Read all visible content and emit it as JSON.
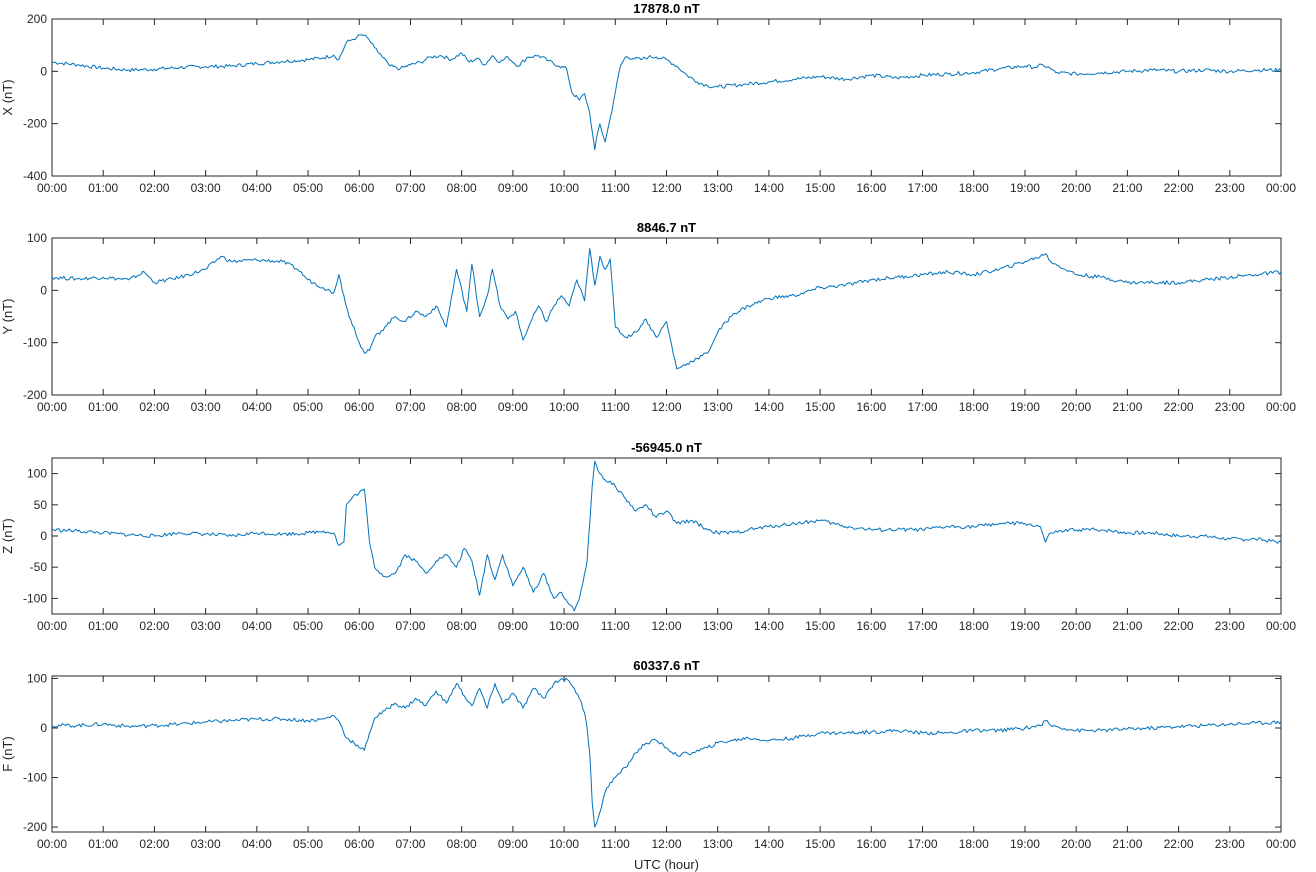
{
  "chart_data": [
    {
      "type": "line",
      "title": "17878.0 nT",
      "ylabel": "X (nT)",
      "xlabel": "",
      "ylim": [
        -400,
        200
      ],
      "yticks": [
        200,
        0,
        -200,
        -400
      ],
      "xticks": [
        "00:00",
        "01:00",
        "02:00",
        "03:00",
        "04:00",
        "05:00",
        "06:00",
        "07:00",
        "08:00",
        "09:00",
        "10:00",
        "11:00",
        "12:00",
        "13:00",
        "14:00",
        "15:00",
        "16:00",
        "17:00",
        "18:00",
        "19:00",
        "20:00",
        "21:00",
        "22:00",
        "23:00",
        "00:00"
      ],
      "series": [
        {
          "color": "#0072bd",
          "x": [
            0,
            0.5,
            1,
            1.5,
            2,
            2.5,
            3,
            3.5,
            4,
            4.5,
            5,
            5.3,
            5.5,
            5.6,
            5.75,
            5.85,
            5.95,
            6.05,
            6.15,
            6.3,
            6.45,
            6.6,
            6.8,
            7,
            7.2,
            7.4,
            7.6,
            7.8,
            8,
            8.15,
            8.3,
            8.45,
            8.6,
            8.75,
            8.9,
            9.1,
            9.3,
            9.5,
            9.7,
            9.9,
            10.05,
            10.15,
            10.3,
            10.4,
            10.5,
            10.55,
            10.6,
            10.65,
            10.7,
            10.8,
            10.9,
            11,
            11.1,
            11.2,
            11.35,
            11.5,
            11.65,
            11.8,
            12,
            12.2,
            12.4,
            12.6,
            12.8,
            13,
            13.5,
            14,
            14.5,
            15,
            15.5,
            16,
            16.5,
            17,
            17.5,
            18,
            18.5,
            19,
            19.2,
            19.35,
            19.5,
            19.6,
            20,
            20.5,
            21,
            21.5,
            22,
            22.5,
            23,
            23.5,
            24
          ],
          "values": [
            35,
            25,
            12,
            5,
            8,
            15,
            18,
            20,
            30,
            38,
            45,
            52,
            62,
            45,
            110,
            120,
            130,
            140,
            130,
            90,
            55,
            20,
            10,
            25,
            35,
            55,
            60,
            45,
            70,
            35,
            50,
            25,
            60,
            35,
            55,
            20,
            55,
            60,
            40,
            20,
            10,
            -80,
            -110,
            -85,
            -160,
            -230,
            -300,
            -240,
            -200,
            -270,
            -180,
            -80,
            20,
            55,
            50,
            45,
            55,
            55,
            45,
            20,
            -15,
            -40,
            -55,
            -60,
            -50,
            -40,
            -30,
            -20,
            -30,
            -15,
            -25,
            -15,
            -10,
            -5,
            10,
            20,
            15,
            25,
            10,
            -5,
            -10,
            -5,
            0,
            5,
            0,
            5,
            0,
            5,
            5
          ]
        }
      ]
    },
    {
      "type": "line",
      "title": "8846.7 nT",
      "ylabel": "Y (nT)",
      "xlabel": "",
      "ylim": [
        -200,
        100
      ],
      "yticks": [
        100,
        0,
        -100,
        -200
      ],
      "xticks": [
        "00:00",
        "01:00",
        "02:00",
        "03:00",
        "04:00",
        "05:00",
        "06:00",
        "07:00",
        "08:00",
        "09:00",
        "10:00",
        "11:00",
        "12:00",
        "13:00",
        "14:00",
        "15:00",
        "16:00",
        "17:00",
        "18:00",
        "19:00",
        "20:00",
        "21:00",
        "22:00",
        "23:00",
        "00:00"
      ],
      "series": [
        {
          "color": "#0072bd",
          "x": [
            0,
            0.5,
            1,
            1.5,
            1.8,
            2,
            2.5,
            3,
            3.3,
            3.5,
            4,
            4.5,
            4.8,
            5,
            5.3,
            5.5,
            5.6,
            5.7,
            5.8,
            5.9,
            6,
            6.1,
            6.2,
            6.3,
            6.5,
            6.7,
            6.9,
            7.1,
            7.3,
            7.5,
            7.7,
            7.9,
            8.1,
            8.2,
            8.35,
            8.5,
            8.6,
            8.75,
            8.9,
            9.05,
            9.2,
            9.35,
            9.5,
            9.65,
            9.8,
            9.95,
            10.1,
            10.25,
            10.4,
            10.5,
            10.6,
            10.7,
            10.8,
            10.9,
            11,
            11.2,
            11.4,
            11.6,
            11.8,
            12,
            12.2,
            12.4,
            12.6,
            12.8,
            13,
            13.3,
            13.6,
            14,
            14.5,
            15,
            15.5,
            16,
            16.5,
            17,
            17.5,
            18,
            18.5,
            19,
            19.3,
            19.4,
            19.5,
            20,
            20.5,
            21,
            21.5,
            22,
            22.5,
            23,
            23.5,
            24
          ],
          "values": [
            25,
            22,
            25,
            20,
            35,
            15,
            25,
            40,
            65,
            55,
            58,
            55,
            40,
            20,
            5,
            -5,
            30,
            -10,
            -50,
            -70,
            -100,
            -120,
            -115,
            -90,
            -70,
            -50,
            -60,
            -40,
            -50,
            -30,
            -70,
            40,
            -40,
            50,
            -50,
            -10,
            40,
            -30,
            -55,
            -40,
            -95,
            -60,
            -30,
            -60,
            -30,
            -10,
            -30,
            20,
            -20,
            80,
            10,
            65,
            40,
            60,
            -70,
            -90,
            -80,
            -55,
            -90,
            -60,
            -150,
            -140,
            -130,
            -120,
            -80,
            -45,
            -30,
            -15,
            -10,
            5,
            10,
            20,
            25,
            30,
            35,
            30,
            40,
            55,
            65,
            70,
            55,
            30,
            25,
            15,
            15,
            15,
            20,
            25,
            30,
            35
          ]
        }
      ]
    },
    {
      "type": "line",
      "title": "-56945.0 nT",
      "ylabel": "Z (nT)",
      "xlabel": "",
      "ylim": [
        -125,
        125
      ],
      "yticks": [
        100,
        50,
        0,
        -50,
        -100
      ],
      "xticks": [
        "00:00",
        "01:00",
        "02:00",
        "03:00",
        "04:00",
        "05:00",
        "06:00",
        "07:00",
        "08:00",
        "09:00",
        "10:00",
        "11:00",
        "12:00",
        "13:00",
        "14:00",
        "15:00",
        "16:00",
        "17:00",
        "18:00",
        "19:00",
        "20:00",
        "21:00",
        "22:00",
        "23:00",
        "00:00"
      ],
      "series": [
        {
          "color": "#0072bd",
          "x": [
            0,
            0.5,
            1,
            1.5,
            2,
            2.5,
            3,
            3.5,
            4,
            4.5,
            5,
            5.3,
            5.5,
            5.6,
            5.7,
            5.75,
            5.85,
            6,
            6.1,
            6.2,
            6.3,
            6.5,
            6.7,
            6.9,
            7.1,
            7.3,
            7.5,
            7.7,
            7.9,
            8.05,
            8.2,
            8.35,
            8.5,
            8.65,
            8.8,
            9,
            9.2,
            9.4,
            9.6,
            9.8,
            9.95,
            10.1,
            10.2,
            10.3,
            10.4,
            10.45,
            10.5,
            10.55,
            10.6,
            10.7,
            10.8,
            11,
            11.2,
            11.4,
            11.6,
            11.8,
            12,
            12.2,
            12.5,
            12.8,
            13,
            13.3,
            13.6,
            14,
            14.5,
            15,
            15.5,
            16,
            16.5,
            17,
            17.5,
            18,
            18.5,
            19,
            19.3,
            19.4,
            19.5,
            20,
            20.5,
            21,
            21.5,
            22,
            22.5,
            23,
            23.5,
            24
          ],
          "values": [
            10,
            8,
            5,
            2,
            0,
            5,
            3,
            0,
            5,
            3,
            5,
            8,
            5,
            -15,
            -10,
            50,
            60,
            70,
            75,
            -10,
            -50,
            -65,
            -60,
            -30,
            -40,
            -60,
            -40,
            -30,
            -50,
            -20,
            -40,
            -95,
            -30,
            -70,
            -30,
            -80,
            -50,
            -90,
            -60,
            -100,
            -90,
            -110,
            -120,
            -100,
            -60,
            -40,
            20,
            80,
            120,
            100,
            90,
            80,
            60,
            40,
            50,
            30,
            40,
            20,
            25,
            10,
            5,
            5,
            10,
            15,
            20,
            25,
            15,
            10,
            10,
            10,
            15,
            15,
            20,
            20,
            15,
            -10,
            5,
            10,
            10,
            5,
            5,
            0,
            0,
            -5,
            -5,
            -10
          ]
        }
      ]
    },
    {
      "type": "line",
      "title": "60337.6 nT",
      "ylabel": "F (nT)",
      "xlabel": "UTC (hour)",
      "ylim": [
        -210,
        105
      ],
      "yticks": [
        100,
        0,
        -100,
        -200
      ],
      "xticks": [
        "00:00",
        "01:00",
        "02:00",
        "03:00",
        "04:00",
        "05:00",
        "06:00",
        "07:00",
        "08:00",
        "09:00",
        "10:00",
        "11:00",
        "12:00",
        "13:00",
        "14:00",
        "15:00",
        "16:00",
        "17:00",
        "18:00",
        "19:00",
        "20:00",
        "21:00",
        "22:00",
        "23:00",
        "00:00"
      ],
      "series": [
        {
          "color": "#0072bd",
          "x": [
            0,
            0.5,
            1,
            1.5,
            2,
            2.5,
            3,
            3.5,
            4,
            4.5,
            5,
            5.3,
            5.5,
            5.6,
            5.75,
            5.9,
            6,
            6.1,
            6.2,
            6.3,
            6.5,
            6.7,
            6.9,
            7.1,
            7.3,
            7.5,
            7.7,
            7.9,
            8.05,
            8.2,
            8.35,
            8.5,
            8.65,
            8.8,
            9,
            9.2,
            9.4,
            9.6,
            9.8,
            9.95,
            10.1,
            10.2,
            10.3,
            10.4,
            10.45,
            10.5,
            10.55,
            10.6,
            10.7,
            10.8,
            10.9,
            11,
            11.2,
            11.4,
            11.6,
            11.8,
            12,
            12.2,
            12.5,
            12.8,
            13,
            13.3,
            13.6,
            14,
            14.5,
            15,
            15.5,
            16,
            16.5,
            17,
            17.5,
            18,
            18.5,
            19,
            19.3,
            19.4,
            19.5,
            20,
            20.5,
            21,
            21.5,
            22,
            22.5,
            23,
            23.5,
            24
          ],
          "values": [
            5,
            5,
            8,
            3,
            5,
            8,
            12,
            15,
            18,
            18,
            15,
            18,
            25,
            15,
            -20,
            -30,
            -40,
            -45,
            -10,
            20,
            35,
            50,
            40,
            60,
            45,
            75,
            50,
            90,
            65,
            45,
            80,
            40,
            90,
            50,
            70,
            40,
            80,
            60,
            90,
            100,
            95,
            80,
            60,
            30,
            0,
            -50,
            -150,
            -200,
            -170,
            -130,
            -110,
            -100,
            -80,
            -50,
            -30,
            -25,
            -40,
            -55,
            -50,
            -40,
            -30,
            -25,
            -20,
            -25,
            -20,
            -10,
            -10,
            -8,
            -5,
            -10,
            -10,
            -5,
            -5,
            0,
            5,
            15,
            5,
            -5,
            -5,
            -2,
            0,
            3,
            5,
            8,
            10,
            12
          ]
        }
      ]
    }
  ]
}
